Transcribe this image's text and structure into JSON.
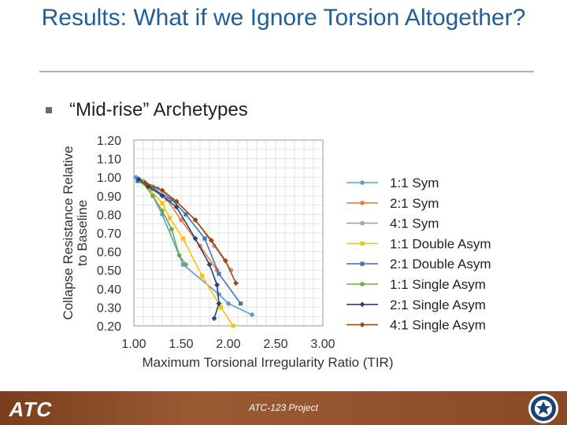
{
  "slide": {
    "title": "Results: What if we Ignore Torsion Altogether?",
    "bullet": "“Mid-rise” Archetypes",
    "footer_text": "ATC-123 Project",
    "logo_text": "ATC"
  },
  "colors": {
    "title": "#1f5e9a",
    "footer": "#8a4a26"
  },
  "chart_data": {
    "type": "line",
    "xlabel": "Maximum Torsional Irregularity Ratio (TIR)",
    "ylabel": "Collapse Resistance Relative to Baseline",
    "ylabel_lines": [
      "Collapse Resistance Relative",
      "to Baseline"
    ],
    "xlim": [
      1.0,
      3.0
    ],
    "ylim": [
      0.2,
      1.2
    ],
    "x_ticks": [
      "1.00",
      "1.50",
      "2.00",
      "2.50",
      "3.00"
    ],
    "y_ticks": [
      "1.20",
      "1.10",
      "1.00",
      "0.90",
      "0.80",
      "0.70",
      "0.60",
      "0.50",
      "0.40",
      "0.30",
      "0.20"
    ],
    "grid": true,
    "legend_position": "right",
    "series": [
      {
        "name": "1:1 Sym",
        "color": "#5b9bd5",
        "marker": "circle",
        "x": [
          1.02,
          1.1,
          1.2,
          1.3,
          1.52,
          1.9,
          2.0,
          2.25
        ],
        "y": [
          1.0,
          0.97,
          0.9,
          0.8,
          0.53,
          0.37,
          0.32,
          0.26
        ]
      },
      {
        "name": "2:1 Sym",
        "color": "#ed7d31",
        "marker": "circle",
        "x": [
          1.05,
          1.2,
          1.35,
          1.5,
          1.7,
          1.88
        ],
        "y": [
          0.98,
          0.95,
          0.88,
          0.77,
          0.63,
          0.5
        ]
      },
      {
        "name": "4:1 Sym",
        "color": "#a5a5a5",
        "marker": "circle",
        "x": [
          1.1,
          1.25,
          1.45,
          1.65,
          1.85,
          2.03
        ],
        "y": [
          0.98,
          0.94,
          0.87,
          0.77,
          0.63,
          0.5
        ]
      },
      {
        "name": "1:1 Double Asym",
        "color": "#ffc000",
        "marker": "square",
        "x": [
          1.05,
          1.18,
          1.3,
          1.38,
          1.52,
          1.72,
          1.92,
          2.05
        ],
        "y": [
          0.98,
          0.93,
          0.86,
          0.78,
          0.67,
          0.47,
          0.3,
          0.2
        ]
      },
      {
        "name": "2:1 Double Asym",
        "color": "#4472c4",
        "marker": "square",
        "x": [
          1.04,
          1.2,
          1.4,
          1.55,
          1.75,
          1.9,
          2.13
        ],
        "y": [
          0.98,
          0.94,
          0.88,
          0.8,
          0.67,
          0.48,
          0.32
        ]
      },
      {
        "name": "1:1 Single Asym",
        "color": "#70ad47",
        "marker": "circle",
        "x": [
          1.08,
          1.2,
          1.3,
          1.4,
          1.48,
          1.55
        ],
        "y": [
          0.98,
          0.9,
          0.82,
          0.72,
          0.58,
          0.53
        ]
      },
      {
        "name": "2:1 Single Asym",
        "color": "#264478",
        "marker": "diamond",
        "x": [
          1.05,
          1.15,
          1.3,
          1.45,
          1.65,
          1.8,
          1.88,
          1.9,
          1.85
        ],
        "y": [
          0.99,
          0.95,
          0.9,
          0.84,
          0.67,
          0.53,
          0.42,
          0.32,
          0.24
        ]
      },
      {
        "name": "4:1 Single Asym",
        "color": "#9e480e",
        "marker": "diamond",
        "x": [
          1.12,
          1.3,
          1.45,
          1.65,
          1.82,
          1.97,
          2.08
        ],
        "y": [
          0.97,
          0.93,
          0.87,
          0.77,
          0.66,
          0.55,
          0.43
        ]
      }
    ]
  }
}
